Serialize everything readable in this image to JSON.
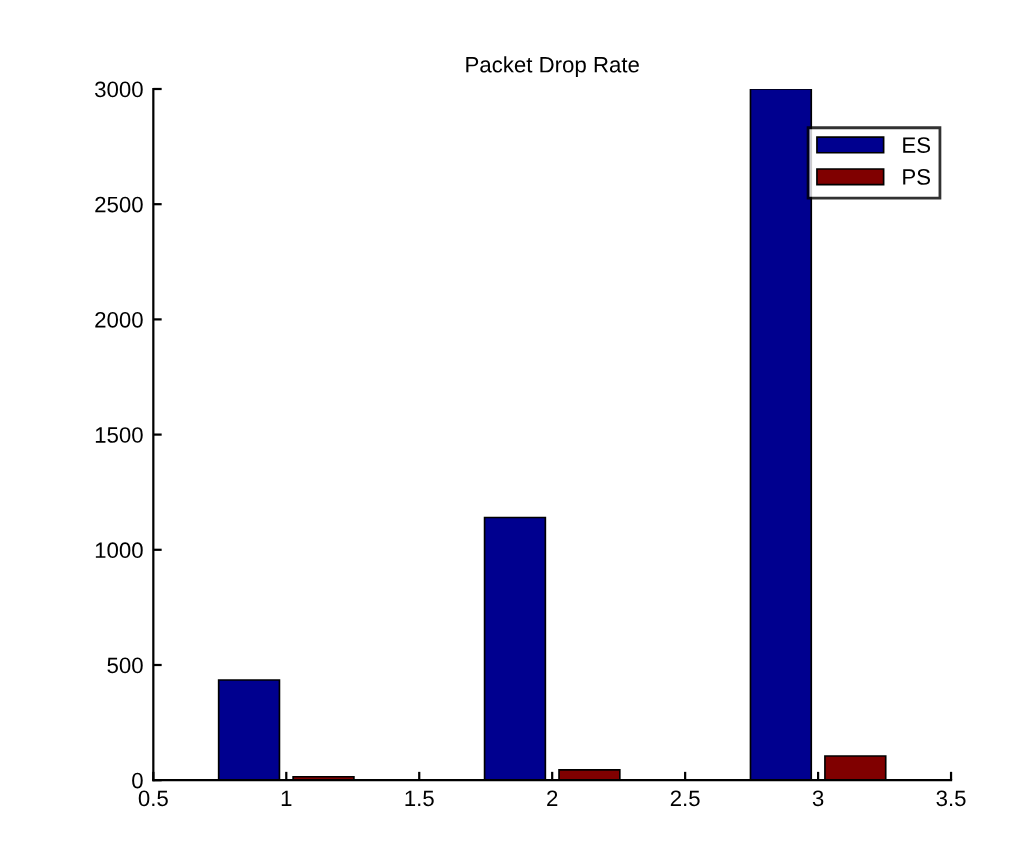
{
  "chart_data": {
    "type": "bar",
    "title": "Packet Drop Rate",
    "x": [
      1,
      2,
      3
    ],
    "series": [
      {
        "name": "ES",
        "color": "#00008f",
        "values": [
          435,
          1140,
          3000
        ]
      },
      {
        "name": "PS",
        "color": "#800000",
        "values": [
          15,
          45,
          105
        ]
      }
    ],
    "xlim": [
      0.5,
      3.5
    ],
    "xticks": [
      0.5,
      1,
      1.5,
      2,
      2.5,
      3,
      3.5
    ],
    "ylim": [
      0,
      3000
    ],
    "yticks": [
      0,
      500,
      1000,
      1500,
      2000,
      2500,
      3000
    ],
    "grid": false,
    "legend": "top right"
  }
}
